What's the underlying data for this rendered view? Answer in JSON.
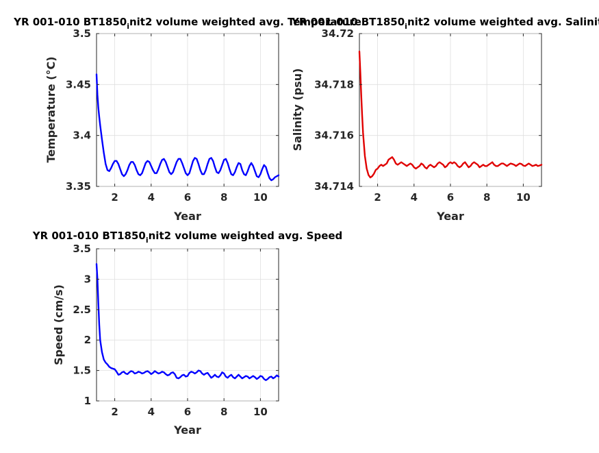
{
  "chart_data": [
    {
      "type": "line",
      "title_prefix": "YR 001-010 BT1850",
      "title_sub": "i",
      "title_suffix": "nit2 volume weighted avg. Temperature",
      "xlabel": "Year",
      "ylabel": "Temperature (°C)",
      "xlim": [
        1,
        11
      ],
      "ylim": [
        3.35,
        3.5
      ],
      "xticks": [
        2,
        4,
        6,
        8,
        10
      ],
      "xtick_labels": [
        "2",
        "4",
        "6",
        "8",
        "10"
      ],
      "yticks": [
        3.35,
        3.4,
        3.45,
        3.5
      ],
      "ytick_labels": [
        "3.35",
        "3.4",
        "3.45",
        "3.5"
      ],
      "grid": true,
      "series": [
        {
          "color": "#0000ff",
          "x": [
            1.0,
            1.05,
            1.1,
            1.15,
            1.2,
            1.3,
            1.4,
            1.5,
            1.6,
            1.7,
            1.8,
            1.9,
            2.0,
            2.1,
            2.2,
            2.3,
            2.4,
            2.5,
            2.6,
            2.7,
            2.8,
            2.9,
            3.0,
            3.1,
            3.2,
            3.3,
            3.4,
            3.5,
            3.6,
            3.7,
            3.8,
            3.9,
            4.0,
            4.1,
            4.2,
            4.3,
            4.4,
            4.5,
            4.6,
            4.7,
            4.8,
            4.9,
            5.0,
            5.1,
            5.2,
            5.3,
            5.4,
            5.5,
            5.6,
            5.7,
            5.8,
            5.9,
            6.0,
            6.1,
            6.2,
            6.3,
            6.4,
            6.5,
            6.6,
            6.7,
            6.8,
            6.9,
            7.0,
            7.1,
            7.2,
            7.3,
            7.4,
            7.5,
            7.6,
            7.7,
            7.8,
            7.9,
            8.0,
            8.1,
            8.2,
            8.3,
            8.4,
            8.5,
            8.6,
            8.7,
            8.8,
            8.9,
            9.0,
            9.1,
            9.2,
            9.3,
            9.4,
            9.5,
            9.6,
            9.7,
            9.8,
            9.9,
            10.0,
            10.1,
            10.2,
            10.3,
            10.4,
            10.5,
            10.6,
            10.7,
            10.8,
            10.9,
            11.0
          ],
          "y": [
            3.46,
            3.44,
            3.427,
            3.418,
            3.41,
            3.396,
            3.383,
            3.372,
            3.366,
            3.365,
            3.368,
            3.372,
            3.375,
            3.375,
            3.372,
            3.367,
            3.362,
            3.36,
            3.362,
            3.366,
            3.371,
            3.374,
            3.374,
            3.371,
            3.366,
            3.362,
            3.361,
            3.363,
            3.368,
            3.373,
            3.375,
            3.374,
            3.37,
            3.366,
            3.363,
            3.363,
            3.367,
            3.372,
            3.376,
            3.377,
            3.374,
            3.369,
            3.364,
            3.362,
            3.364,
            3.369,
            3.374,
            3.377,
            3.377,
            3.373,
            3.368,
            3.363,
            3.361,
            3.363,
            3.369,
            3.375,
            3.378,
            3.377,
            3.372,
            3.366,
            3.362,
            3.362,
            3.366,
            3.372,
            3.377,
            3.378,
            3.375,
            3.369,
            3.364,
            3.363,
            3.366,
            3.371,
            3.376,
            3.377,
            3.373,
            3.367,
            3.362,
            3.361,
            3.364,
            3.369,
            3.373,
            3.372,
            3.366,
            3.362,
            3.361,
            3.365,
            3.37,
            3.373,
            3.37,
            3.365,
            3.36,
            3.359,
            3.362,
            3.367,
            3.371,
            3.369,
            3.363,
            3.358,
            3.356,
            3.357,
            3.359,
            3.36,
            3.361
          ]
        }
      ]
    },
    {
      "type": "line",
      "title_prefix": "YR 001-010 BT1850",
      "title_sub": "i",
      "title_suffix": "nit2 volume weighted avg. Salinity",
      "xlabel": "Year",
      "ylabel": "Salinity (psu)",
      "xlim": [
        1,
        11
      ],
      "ylim": [
        34.714,
        34.72
      ],
      "xticks": [
        2,
        4,
        6,
        8,
        10
      ],
      "xtick_labels": [
        "2",
        "4",
        "6",
        "8",
        "10"
      ],
      "yticks": [
        34.714,
        34.716,
        34.718,
        34.72
      ],
      "ytick_labels": [
        "34.714",
        "34.716",
        "34.718",
        "34.72"
      ],
      "grid": true,
      "series": [
        {
          "color": "#e00000",
          "x": [
            1.0,
            1.05,
            1.1,
            1.15,
            1.2,
            1.3,
            1.4,
            1.5,
            1.6,
            1.7,
            1.8,
            1.9,
            2.0,
            2.1,
            2.2,
            2.3,
            2.4,
            2.5,
            2.6,
            2.7,
            2.8,
            2.9,
            3.0,
            3.1,
            3.2,
            3.3,
            3.4,
            3.5,
            3.6,
            3.7,
            3.8,
            3.9,
            4.0,
            4.1,
            4.2,
            4.3,
            4.4,
            4.5,
            4.6,
            4.7,
            4.8,
            4.9,
            5.0,
            5.1,
            5.2,
            5.3,
            5.4,
            5.5,
            5.6,
            5.7,
            5.8,
            5.9,
            6.0,
            6.1,
            6.2,
            6.3,
            6.4,
            6.5,
            6.6,
            6.7,
            6.8,
            6.9,
            7.0,
            7.1,
            7.2,
            7.3,
            7.4,
            7.5,
            7.6,
            7.7,
            7.8,
            7.9,
            8.0,
            8.1,
            8.2,
            8.3,
            8.4,
            8.5,
            8.6,
            8.7,
            8.8,
            8.9,
            9.0,
            9.1,
            9.2,
            9.3,
            9.4,
            9.5,
            9.6,
            9.7,
            9.8,
            9.9,
            10.0,
            10.1,
            10.2,
            10.3,
            10.4,
            10.5,
            10.6,
            10.7,
            10.8,
            10.9,
            11.0
          ],
          "y": [
            34.7193,
            34.7185,
            34.7176,
            34.7168,
            34.7161,
            34.7152,
            34.7147,
            34.71445,
            34.71435,
            34.7144,
            34.7145,
            34.71465,
            34.7147,
            34.7148,
            34.71485,
            34.7148,
            34.71485,
            34.7149,
            34.71505,
            34.7151,
            34.71515,
            34.71505,
            34.7149,
            34.71485,
            34.7149,
            34.71495,
            34.7149,
            34.71485,
            34.7148,
            34.71485,
            34.7149,
            34.71485,
            34.71475,
            34.7147,
            34.71475,
            34.7148,
            34.7149,
            34.71485,
            34.71475,
            34.7147,
            34.7148,
            34.71485,
            34.7148,
            34.71475,
            34.7148,
            34.7149,
            34.71495,
            34.7149,
            34.71485,
            34.71475,
            34.7148,
            34.7149,
            34.71495,
            34.7149,
            34.71495,
            34.7149,
            34.7148,
            34.71475,
            34.7148,
            34.7149,
            34.71495,
            34.71485,
            34.71475,
            34.7148,
            34.7149,
            34.71495,
            34.7149,
            34.71485,
            34.71475,
            34.7148,
            34.71485,
            34.7148,
            34.7148,
            34.71485,
            34.7149,
            34.71495,
            34.71485,
            34.7148,
            34.7148,
            34.71485,
            34.7149,
            34.7149,
            34.71485,
            34.7148,
            34.71485,
            34.7149,
            34.71488,
            34.71485,
            34.7148,
            34.71485,
            34.7149,
            34.71488,
            34.71482,
            34.7148,
            34.71485,
            34.7149,
            34.71485,
            34.7148,
            34.71482,
            34.71485,
            34.7148,
            34.71482,
            34.71485
          ]
        }
      ]
    },
    {
      "type": "line",
      "title_prefix": "YR 001-010 BT1850",
      "title_sub": "i",
      "title_suffix": "nit2 volume weighted avg. Speed",
      "xlabel": "Year",
      "ylabel": "Speed (cm/s)",
      "xlim": [
        1,
        11
      ],
      "ylim": [
        1,
        3.5
      ],
      "xticks": [
        2,
        4,
        6,
        8,
        10
      ],
      "xtick_labels": [
        "2",
        "4",
        "6",
        "8",
        "10"
      ],
      "yticks": [
        1,
        1.5,
        2,
        2.5,
        3,
        3.5
      ],
      "ytick_labels": [
        "1",
        "1.5",
        "2",
        "2.5",
        "3",
        "3.5"
      ],
      "grid": true,
      "series": [
        {
          "color": "#0000ff",
          "x": [
            1.0,
            1.05,
            1.1,
            1.15,
            1.2,
            1.3,
            1.4,
            1.5,
            1.6,
            1.7,
            1.8,
            1.9,
            2.0,
            2.1,
            2.2,
            2.3,
            2.4,
            2.5,
            2.6,
            2.7,
            2.8,
            2.9,
            3.0,
            3.1,
            3.2,
            3.3,
            3.4,
            3.5,
            3.6,
            3.7,
            3.8,
            3.9,
            4.0,
            4.1,
            4.2,
            4.3,
            4.4,
            4.5,
            4.6,
            4.7,
            4.8,
            4.9,
            5.0,
            5.1,
            5.2,
            5.3,
            5.4,
            5.5,
            5.6,
            5.7,
            5.8,
            5.9,
            6.0,
            6.1,
            6.2,
            6.3,
            6.4,
            6.5,
            6.6,
            6.7,
            6.8,
            6.9,
            7.0,
            7.1,
            7.2,
            7.3,
            7.4,
            7.5,
            7.6,
            7.7,
            7.8,
            7.9,
            8.0,
            8.1,
            8.2,
            8.3,
            8.4,
            8.5,
            8.6,
            8.7,
            8.8,
            8.9,
            9.0,
            9.1,
            9.2,
            9.3,
            9.4,
            9.5,
            9.6,
            9.7,
            9.8,
            9.9,
            10.0,
            10.1,
            10.2,
            10.3,
            10.4,
            10.5,
            10.6,
            10.7,
            10.8,
            10.9,
            11.0
          ],
          "y": [
            3.25,
            3.0,
            2.6,
            2.25,
            2.0,
            1.8,
            1.68,
            1.63,
            1.6,
            1.56,
            1.54,
            1.53,
            1.52,
            1.48,
            1.43,
            1.44,
            1.47,
            1.48,
            1.45,
            1.44,
            1.47,
            1.49,
            1.48,
            1.45,
            1.46,
            1.48,
            1.47,
            1.45,
            1.46,
            1.48,
            1.49,
            1.47,
            1.44,
            1.46,
            1.49,
            1.47,
            1.45,
            1.46,
            1.48,
            1.47,
            1.44,
            1.42,
            1.43,
            1.46,
            1.47,
            1.44,
            1.38,
            1.37,
            1.39,
            1.42,
            1.43,
            1.4,
            1.41,
            1.46,
            1.48,
            1.47,
            1.45,
            1.47,
            1.5,
            1.49,
            1.45,
            1.43,
            1.45,
            1.46,
            1.42,
            1.38,
            1.4,
            1.43,
            1.4,
            1.39,
            1.42,
            1.47,
            1.45,
            1.4,
            1.38,
            1.41,
            1.43,
            1.39,
            1.37,
            1.4,
            1.43,
            1.4,
            1.37,
            1.39,
            1.41,
            1.4,
            1.37,
            1.39,
            1.41,
            1.39,
            1.36,
            1.38,
            1.41,
            1.4,
            1.36,
            1.34,
            1.36,
            1.39,
            1.4,
            1.37,
            1.39,
            1.42,
            1.4
          ]
        }
      ]
    }
  ]
}
